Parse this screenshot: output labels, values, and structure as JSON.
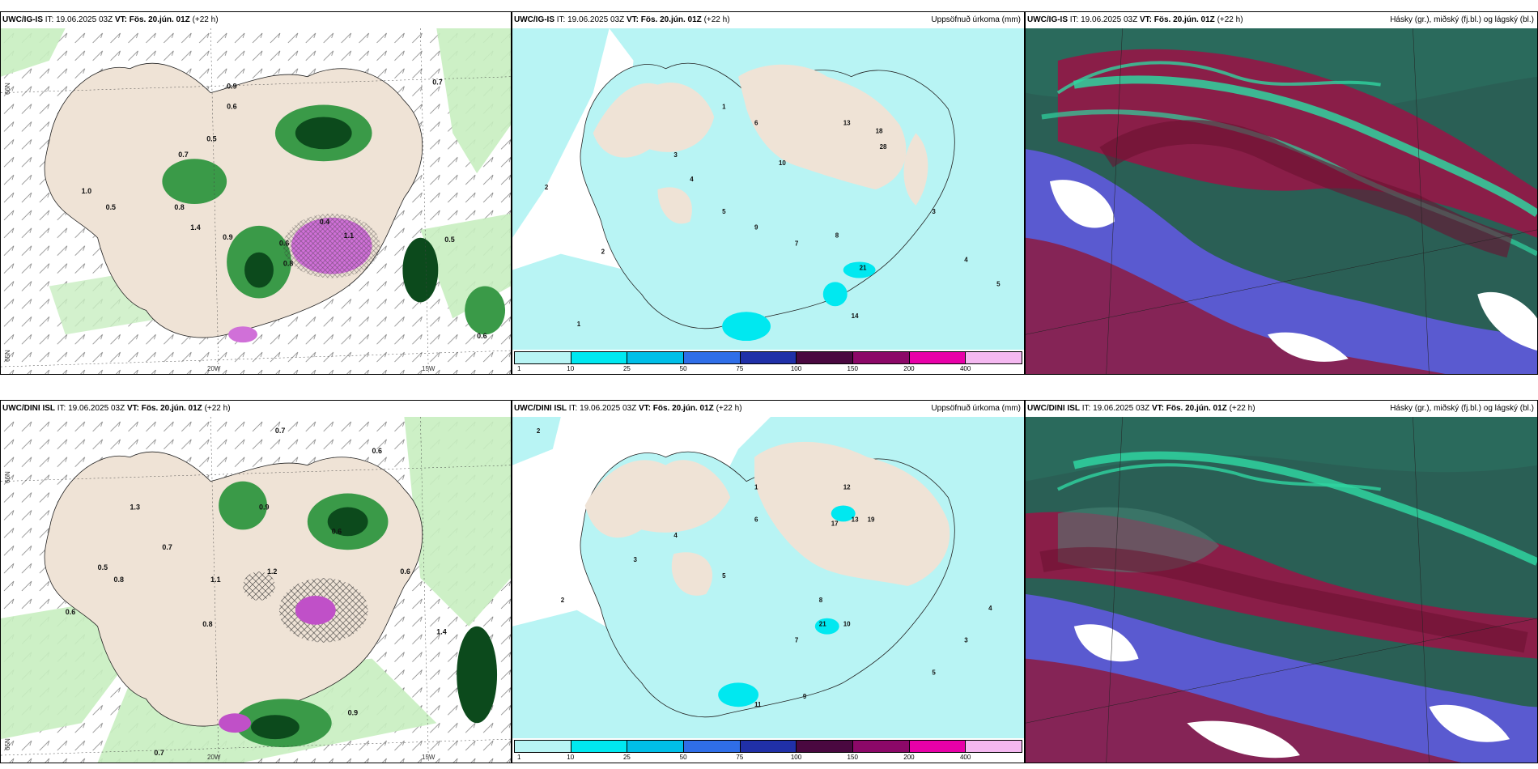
{
  "panels": [
    {
      "id": "p1",
      "model": "UWC/IG-IS",
      "it_label": "IT:",
      "it_value": "19.06.2025 03Z",
      "vt_label": "VT:",
      "vt_value": "Fös. 20.jún. 01Z",
      "lead": "(+22 h)",
      "right_title": "",
      "kind": "wind-precip"
    },
    {
      "id": "p2",
      "model": "UWC/IG-IS",
      "it_label": "IT:",
      "it_value": "19.06.2025 03Z",
      "vt_label": "VT:",
      "vt_value": "Fös. 20.jún. 01Z",
      "lead": "(+22 h)",
      "right_title": "Uppsöfnuð úrkoma (mm)",
      "kind": "accum"
    },
    {
      "id": "p3",
      "model": "UWC/IG-IS",
      "it_label": "IT:",
      "it_value": "19.06.2025 03Z",
      "vt_label": "VT:",
      "vt_value": "Fös. 20.jún. 01Z",
      "lead": "(+22 h)",
      "right_title": "Hásky (gr.), miðský (fj.bl.) og lágský (bl.)",
      "kind": "clouds"
    },
    {
      "id": "p4",
      "model": "UWC/DINI ISL",
      "it_label": "IT:",
      "it_value": "19.06.2025 03Z",
      "vt_label": "VT:",
      "vt_value": "Fös. 20.jún. 01Z",
      "lead": "(+22 h)",
      "right_title": "",
      "kind": "wind-precip"
    },
    {
      "id": "p5",
      "model": "UWC/DINI ISL",
      "it_label": "IT:",
      "it_value": "19.06.2025 03Z",
      "vt_label": "VT:",
      "vt_value": "Fös. 20.jún. 01Z",
      "lead": "(+22 h)",
      "right_title": "Uppsöfnuð úrkoma (mm)",
      "kind": "accum"
    },
    {
      "id": "p6",
      "model": "UWC/DINI ISL",
      "it_label": "IT:",
      "it_value": "19.06.2025 03Z",
      "vt_label": "VT:",
      "vt_value": "Fös. 20.jún. 01Z",
      "lead": "(+22 h)",
      "right_title": "Hásky (gr.), miðský (fj.bl.) og lágský (bl.)",
      "kind": "clouds"
    }
  ],
  "precip_values_top": [
    "0.9",
    "0.6",
    "0.5",
    "0.7",
    "1.0",
    "0.8",
    "1.4",
    "0.5",
    "0.9",
    "0.6",
    "1.1",
    "0.8",
    "0.4",
    "0.5",
    "0.7",
    "0.6"
  ],
  "precip_values_bottom": [
    "0.7",
    "0.6",
    "1.3",
    "0.9",
    "0.5",
    "0.6",
    "1.2",
    "0.8",
    "0.7",
    "1.1",
    "0.6",
    "1.4",
    "0.9",
    "0.8",
    "0.6",
    "0.7"
  ],
  "accum_values_top": [
    "1",
    "2",
    "3",
    "4",
    "5",
    "6",
    "7",
    "8",
    "9",
    "10",
    "13",
    "14",
    "18",
    "21",
    "28",
    "3",
    "4",
    "5",
    "2",
    "1"
  ],
  "accum_values_bottom": [
    "1",
    "2",
    "3",
    "4",
    "5",
    "6",
    "7",
    "8",
    "9",
    "10",
    "11",
    "12",
    "13",
    "17",
    "19",
    "21",
    "3",
    "4",
    "5",
    "2"
  ],
  "colorbar": {
    "labels": [
      "1",
      "10",
      "25",
      "50",
      "75",
      "100",
      "150",
      "200",
      "400"
    ],
    "colors": [
      "#b8f4f4",
      "#00e8f0",
      "#00bfe8",
      "#2f6ee8",
      "#2030a8",
      "#4a0840",
      "#8c0868",
      "#e800a8",
      "#f4b8f0"
    ]
  },
  "axis_labels": {
    "lon_20w": "20W",
    "lon_15w": "15W",
    "lat_66n": "66N",
    "lat_65n": "65N"
  },
  "colors": {
    "land": "#efe3d6",
    "sea_cyan": "#b8f4f4",
    "precip_light": "#b8e8b0",
    "precip_mid": "#2e8b3a",
    "precip_dark": "#0c4a1c",
    "precip_purple": "#c050c8",
    "cloud_teal": "#1e5a50",
    "cloud_green": "#2fd4a0",
    "cloud_maroon": "#8a1e48",
    "cloud_blue": "#5a5ad0"
  }
}
